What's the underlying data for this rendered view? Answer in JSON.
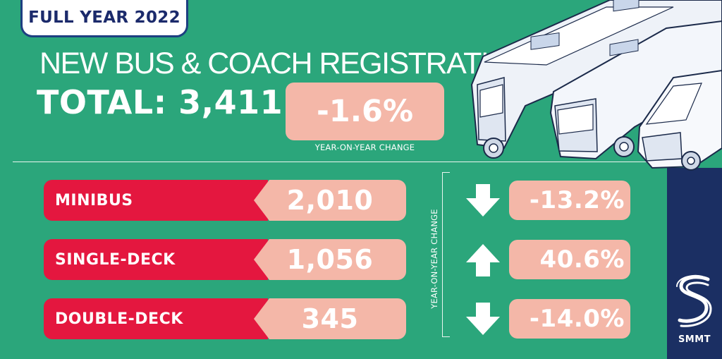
{
  "header": {
    "tag": "FULL YEAR 2022"
  },
  "headline": "NEW BUS & COACH REGISTRATIONS",
  "total": {
    "text": "TOTAL: 3,411"
  },
  "overall_change": {
    "value": "-1.6%",
    "caption": "YEAR-ON-YEAR CHANGE"
  },
  "rows": [
    {
      "label": "MINIBUS",
      "value": "2,010",
      "change": "-13.2%",
      "direction": "down"
    },
    {
      "label": "SINGLE-DECK",
      "value": "1,056",
      "change": "40.6%",
      "direction": "up"
    },
    {
      "label": "DOUBLE-DECK",
      "value": "345",
      "change": "-14.0%",
      "direction": "down"
    }
  ],
  "change_caption": "YEAR-ON-YEAR CHANGE",
  "brand": {
    "name": "SMMT"
  },
  "colors": {
    "background": "#2ba67b",
    "category": "#e4173f",
    "value_box": "#f4b7a8",
    "brand_panel": "#1b2f63"
  }
}
